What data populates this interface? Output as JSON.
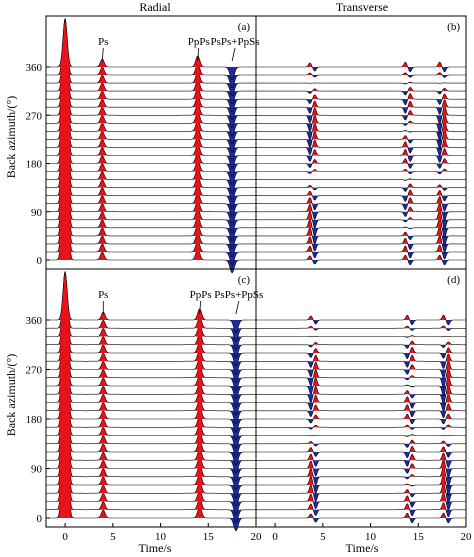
{
  "figure": {
    "columns": [
      "Radial",
      "Transverse"
    ],
    "ylabel": "Back azimuth/(°)",
    "xlabel": "Time/s",
    "colors": {
      "positive": "#e8121a",
      "negative": "#1f2a9b",
      "outline": "#000000",
      "frame": "#000000"
    }
  },
  "chart_data": [
    {
      "type": "waveform-section",
      "panel": "(a)",
      "column": "Radial",
      "x_ticks": [],
      "y_ticks": [
        0,
        90,
        180,
        270,
        360
      ],
      "xlim": [
        -2,
        20
      ],
      "ylim": [
        0,
        360
      ],
      "phase_labels": [
        {
          "text": "Ps",
          "time": 4.0
        },
        {
          "text": "PpPs",
          "time": 14.0
        },
        {
          "text": "PsPs+PpSs",
          "time": 17.8
        }
      ],
      "traces": "radial",
      "arrivals": {
        "P": 0.0,
        "Ps": 3.9,
        "PpPs": 13.9,
        "PsPs+PpSs": 17.5
      }
    },
    {
      "type": "waveform-section",
      "panel": "(b)",
      "column": "Transverse",
      "x_ticks": [],
      "y_ticks": [],
      "xlim": [
        -2,
        20
      ],
      "ylim": [
        0,
        360
      ],
      "traces": "transverse",
      "arrivals": {
        "Ps": 3.9,
        "PpPs": 13.9,
        "PsPs+PpSs": 17.5
      }
    },
    {
      "type": "waveform-section",
      "panel": "(c)",
      "column": "Radial",
      "x_ticks": [
        0,
        5,
        10,
        15,
        20
      ],
      "y_ticks": [
        0,
        90,
        180,
        270,
        360
      ],
      "xlim": [
        -2,
        20
      ],
      "ylim": [
        0,
        360
      ],
      "phase_labels": [
        {
          "text": "Ps",
          "time": 4.0
        },
        {
          "text": "PpPs",
          "time": 14.2
        },
        {
          "text": "PsPs+PpSs",
          "time": 18.2
        }
      ],
      "traces": "radial",
      "arrivals": {
        "P": 0.0,
        "Ps": 4.0,
        "PpPs": 14.1,
        "PsPs+PpSs": 17.9
      }
    },
    {
      "type": "waveform-section",
      "panel": "(d)",
      "column": "Transverse",
      "x_ticks": [
        0,
        5,
        10,
        15,
        20
      ],
      "y_ticks": [],
      "xlim": [
        -2,
        20
      ],
      "ylim": [
        0,
        360
      ],
      "traces": "transverse",
      "arrivals": {
        "Ps": 4.0,
        "PpPs": 14.1,
        "PsPs+PpSs": 17.9
      }
    }
  ]
}
